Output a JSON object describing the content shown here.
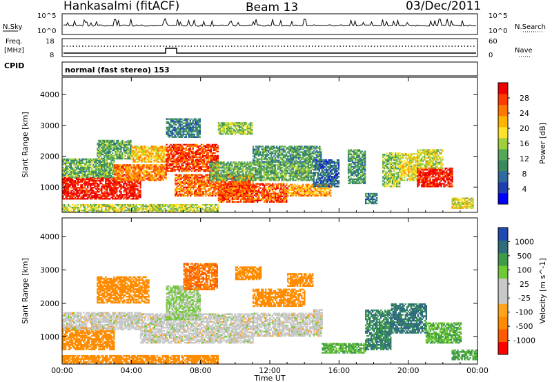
{
  "header": {
    "station": "Hankasalmi (fitACF)",
    "beam": "Beam 13",
    "date": "03/Dec/2011"
  },
  "noise_panel": {
    "left_label": "N.Sky",
    "left_ticks": [
      "10^5",
      "10^0"
    ],
    "right_label": "N.Search",
    "right_ticks": [
      "10^5",
      "10^0"
    ]
  },
  "freq_panel": {
    "left_label_1": "Freq.",
    "left_label_2": "[MHz]",
    "left_ticks": [
      "18",
      "8"
    ],
    "right_label": "Nave",
    "right_ticks": [
      "60",
      "0"
    ]
  },
  "cpid": {
    "label": "CPID",
    "text": "normal (fast stereo) 153"
  },
  "time_axis": {
    "label": "Time UT",
    "ticks": [
      "00:00",
      "04:00",
      "08:00",
      "12:00",
      "16:00",
      "20:00",
      "00:00"
    ]
  },
  "range_axis": {
    "label": "Slant Range [km]",
    "ticks": [
      "1000",
      "2000",
      "3000",
      "4000"
    ],
    "range_km": [
      180,
      4560
    ]
  },
  "colors": {
    "power_scale": [
      "#0000ff",
      "#1f3fb0",
      "#2e6aa0",
      "#3a8a5e",
      "#55a85a",
      "#9fcf3c",
      "#ffe22a",
      "#ffb400",
      "#ff7800",
      "#ff3c00",
      "#ee0000"
    ],
    "velocity_scale": [
      "#ff0000",
      "#ff5a00",
      "#ff8c00",
      "#ffa31a",
      "#c8c8c8",
      "#c8c8c8",
      "#71c837",
      "#3f9a4a",
      "#2e6e7c",
      "#1f4ab0"
    ]
  },
  "chart_data": [
    {
      "type": "heatmap",
      "title": "Power",
      "colorbar_label": "Power [dB]",
      "colorbar_ticks": [
        "4",
        "8",
        "12",
        "16",
        "20",
        "24",
        "28"
      ],
      "value_range": [
        0,
        30
      ],
      "x_range_hours": [
        0,
        24
      ],
      "y_range_km": [
        180,
        4560
      ],
      "regions": [
        {
          "t": [
            0.0,
            4.5
          ],
          "r": [
            600,
            1300
          ],
          "value": 30
        },
        {
          "t": [
            0.0,
            3.0
          ],
          "r": [
            1300,
            1900
          ],
          "value": 12
        },
        {
          "t": [
            3.0,
            6.0
          ],
          "r": [
            1200,
            1700
          ],
          "value": 24
        },
        {
          "t": [
            2.0,
            4.0
          ],
          "r": [
            1900,
            2500
          ],
          "value": 12
        },
        {
          "t": [
            4.0,
            6.0
          ],
          "r": [
            1800,
            2300
          ],
          "value": 20
        },
        {
          "t": [
            6.0,
            9.0
          ],
          "r": [
            1500,
            2400
          ],
          "value": 27
        },
        {
          "t": [
            6.5,
            11.0
          ],
          "r": [
            700,
            1400
          ],
          "value": 25
        },
        {
          "t": [
            9.0,
            13.0
          ],
          "r": [
            500,
            1100
          ],
          "value": 26
        },
        {
          "t": [
            8.5,
            14.5
          ],
          "r": [
            1200,
            1800
          ],
          "value": 12
        },
        {
          "t": [
            13.0,
            15.5
          ],
          "r": [
            700,
            1100
          ],
          "value": 22
        },
        {
          "t": [
            11.0,
            15.0
          ],
          "r": [
            1800,
            2300
          ],
          "value": 10
        },
        {
          "t": [
            14.5,
            16.0
          ],
          "r": [
            1000,
            1900
          ],
          "value": 6
        },
        {
          "t": [
            16.5,
            17.5
          ],
          "r": [
            1100,
            2200
          ],
          "value": 10
        },
        {
          "t": [
            17.5,
            18.2
          ],
          "r": [
            450,
            800
          ],
          "value": 8
        },
        {
          "t": [
            18.5,
            19.5
          ],
          "r": [
            1000,
            2100
          ],
          "value": 14
        },
        {
          "t": [
            19.5,
            20.5
          ],
          "r": [
            1200,
            2100
          ],
          "value": 18
        },
        {
          "t": [
            20.5,
            22.5
          ],
          "r": [
            1000,
            1600
          ],
          "value": 30
        },
        {
          "t": [
            20.5,
            22.0
          ],
          "r": [
            1600,
            2200
          ],
          "value": 16
        },
        {
          "t": [
            22.5,
            23.7
          ],
          "r": [
            300,
            650
          ],
          "value": 18
        },
        {
          "t": [
            0.0,
            9.0
          ],
          "r": [
            180,
            420
          ],
          "value": 16
        },
        {
          "t": [
            6.0,
            8.0
          ],
          "r": [
            2600,
            3200
          ],
          "value": 8
        },
        {
          "t": [
            9.0,
            11.0
          ],
          "r": [
            2700,
            3100
          ],
          "value": 14
        }
      ]
    },
    {
      "type": "heatmap",
      "title": "Velocity",
      "colorbar_label": "Velocity [m s^-1]",
      "colorbar_ticks": [
        "-1000",
        "-500",
        "-100",
        "-25",
        "25",
        "100",
        "500",
        "1000"
      ],
      "value_range": [
        -1000,
        1000
      ],
      "x_range_hours": [
        0,
        24
      ],
      "y_range_km": [
        180,
        4560
      ],
      "regions": [
        {
          "t": [
            0.0,
            3.0
          ],
          "r": [
            600,
            1300
          ],
          "value": -150
        },
        {
          "t": [
            0.0,
            4.5
          ],
          "r": [
            1200,
            1700
          ],
          "value": 0
        },
        {
          "t": [
            4.5,
            11.0
          ],
          "r": [
            800,
            1700
          ],
          "value": 0
        },
        {
          "t": [
            6.0,
            8.0
          ],
          "r": [
            1500,
            2500
          ],
          "value": 30
        },
        {
          "t": [
            11.0,
            15.0
          ],
          "r": [
            1000,
            1700
          ],
          "value": 0
        },
        {
          "t": [
            11.0,
            14.0
          ],
          "r": [
            1900,
            2400
          ],
          "value": -200
        },
        {
          "t": [
            13.0,
            14.5
          ],
          "r": [
            2500,
            2900
          ],
          "value": -300
        },
        {
          "t": [
            14.5,
            15.0
          ],
          "r": [
            1200,
            1800
          ],
          "value": 0
        },
        {
          "t": [
            15.0,
            17.5
          ],
          "r": [
            500,
            800
          ],
          "value": 100
        },
        {
          "t": [
            17.5,
            19.0
          ],
          "r": [
            600,
            1800
          ],
          "value": 500
        },
        {
          "t": [
            19.0,
            21.0
          ],
          "r": [
            1100,
            2000
          ],
          "value": 600
        },
        {
          "t": [
            21.0,
            23.0
          ],
          "r": [
            800,
            1400
          ],
          "value": 100
        },
        {
          "t": [
            22.5,
            24.0
          ],
          "r": [
            300,
            600
          ],
          "value": 120
        },
        {
          "t": [
            0.0,
            9.0
          ],
          "r": [
            180,
            420
          ],
          "value": -150
        },
        {
          "t": [
            2.0,
            5.0
          ],
          "r": [
            2000,
            2800
          ],
          "value": -300
        },
        {
          "t": [
            7.0,
            9.0
          ],
          "r": [
            2400,
            3200
          ],
          "value": -500
        },
        {
          "t": [
            10.0,
            11.5
          ],
          "r": [
            2700,
            3100
          ],
          "value": -300
        }
      ]
    }
  ]
}
